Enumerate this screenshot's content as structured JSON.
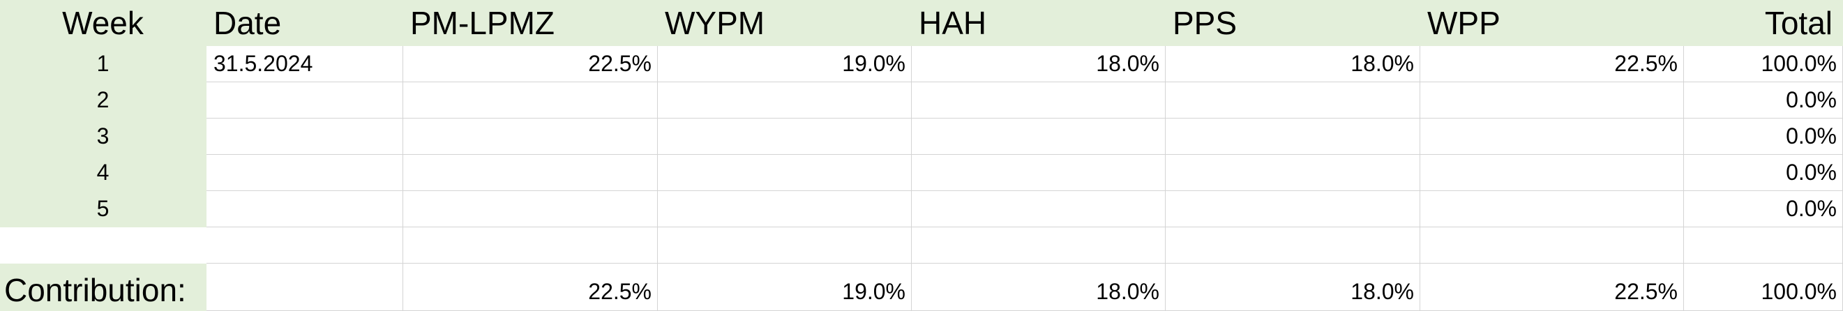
{
  "headers": [
    "Week",
    "Date",
    "PM-LPMZ",
    "WYPM",
    "HAH",
    "PPS",
    "WPP",
    "Total"
  ],
  "rows": [
    {
      "week": "1",
      "date": "31.5.2024",
      "pm_lpmz": "22.5%",
      "wypm": "19.0%",
      "hah": "18.0%",
      "pps": "18.0%",
      "wpp": "22.5%",
      "total": "100.0%"
    },
    {
      "week": "2",
      "date": "",
      "pm_lpmz": "",
      "wypm": "",
      "hah": "",
      "pps": "",
      "wpp": "",
      "total": "0.0%"
    },
    {
      "week": "3",
      "date": "",
      "pm_lpmz": "",
      "wypm": "",
      "hah": "",
      "pps": "",
      "wpp": "",
      "total": "0.0%"
    },
    {
      "week": "4",
      "date": "",
      "pm_lpmz": "",
      "wypm": "",
      "hah": "",
      "pps": "",
      "wpp": "",
      "total": "0.0%"
    },
    {
      "week": "5",
      "date": "",
      "pm_lpmz": "",
      "wypm": "",
      "hah": "",
      "pps": "",
      "wpp": "",
      "total": "0.0%"
    }
  ],
  "contribution": {
    "label": "Contribution:",
    "pm_lpmz": "22.5%",
    "wypm": "19.0%",
    "hah": "18.0%",
    "pps": "18.0%",
    "wpp": "22.5%",
    "total": "100.0%"
  },
  "colors": {
    "header_fill": "#e3efda",
    "gridline": "#d4d4d4"
  }
}
